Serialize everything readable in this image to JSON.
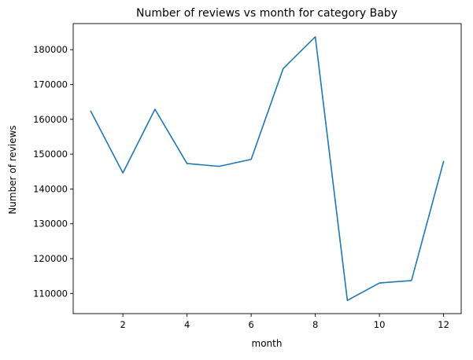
{
  "chart_data": {
    "type": "line",
    "title": "Number of reviews vs month for category Baby",
    "xlabel": "month",
    "ylabel": "Number of reviews",
    "x": [
      1,
      2,
      3,
      4,
      5,
      6,
      7,
      8,
      9,
      10,
      11,
      12
    ],
    "series": [
      {
        "values": [
          162300,
          144600,
          162900,
          147300,
          146500,
          148500,
          174600,
          183700,
          108000,
          113000,
          113700,
          147900
        ]
      }
    ],
    "xticks": [
      2,
      4,
      6,
      8,
      10,
      12
    ],
    "yticks": [
      110000,
      120000,
      130000,
      140000,
      150000,
      160000,
      170000,
      180000
    ],
    "xlim": [
      0.45,
      12.55
    ],
    "ylim": [
      104200,
      187500
    ],
    "grid": false,
    "line_color": "#1f77b4"
  }
}
